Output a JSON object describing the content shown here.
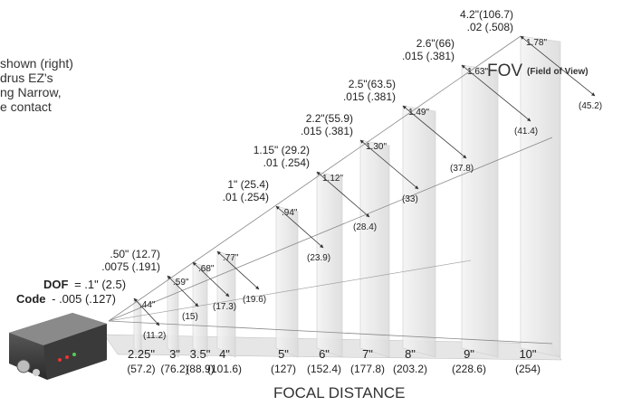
{
  "side_text": {
    "lines": [
      "shown (right)",
      "drus EZ's",
      "ng Narrow,",
      "e contact"
    ]
  },
  "diagram": {
    "fov_title": "FOV",
    "fov_subtitle": "(Field of View)",
    "x_axis_title": "FOCAL DISTANCE",
    "dof_label": "DOF",
    "dof_value": "= .1\" (2.5)",
    "code_label": "Code",
    "code_value": "- .005 (.127)",
    "stations": [
      {
        "dist": "2.25\"",
        "dist_mm": "(57.2)",
        "fov": ".44\"",
        "fov_mm": "(11.2)",
        "dof": "",
        "code": ""
      },
      {
        "dist": "3\"",
        "dist_mm": "(76.2)",
        "fov": ".59\"",
        "fov_mm": "(15)",
        "dof": ".50\" (12.7)",
        "code": ".0075 (.191)"
      },
      {
        "dist": "3.5\"",
        "dist_mm": "(88.9)",
        "fov": ".68\"",
        "fov_mm": "(17.3)",
        "dof": "",
        "code": ""
      },
      {
        "dist": "4\"",
        "dist_mm": "(101.6)",
        "fov": ".77\"",
        "fov_mm": "(19.6)",
        "dof": "",
        "code": ""
      },
      {
        "dist": "5\"",
        "dist_mm": "(127)",
        "fov": ".94\"",
        "fov_mm": "(23.9)",
        "dof": "1\" (25.4)",
        "code": ".01 (.254)"
      },
      {
        "dist": "6\"",
        "dist_mm": "(152.4)",
        "fov": "1.12\"",
        "fov_mm": "(28.4)",
        "dof": "1.15\" (29.2)",
        "code": ".01 (.254)"
      },
      {
        "dist": "7\"",
        "dist_mm": "(177.8)",
        "fov": "1.30\"",
        "fov_mm": "(33)",
        "dof": "2.2\"(55.9)",
        "code": ".015 (.381)"
      },
      {
        "dist": "8\"",
        "dist_mm": "(203.2)",
        "fov": "1.49\"",
        "fov_mm": "(37.8)",
        "dof": "2.5\"(63.5)",
        "code": ".015 (.381)"
      },
      {
        "dist": "9\"",
        "dist_mm": "(228.6)",
        "fov": "1.63\"",
        "fov_mm": "(41.4)",
        "dof": "2.6\"(66)",
        "code": ".015 (.381)"
      },
      {
        "dist": "10\"",
        "dist_mm": "(254)",
        "fov": "1.78\"",
        "fov_mm": "(45.2)",
        "dof": "4.2\"(106.7)",
        "code": ".02 (.508)"
      }
    ]
  }
}
